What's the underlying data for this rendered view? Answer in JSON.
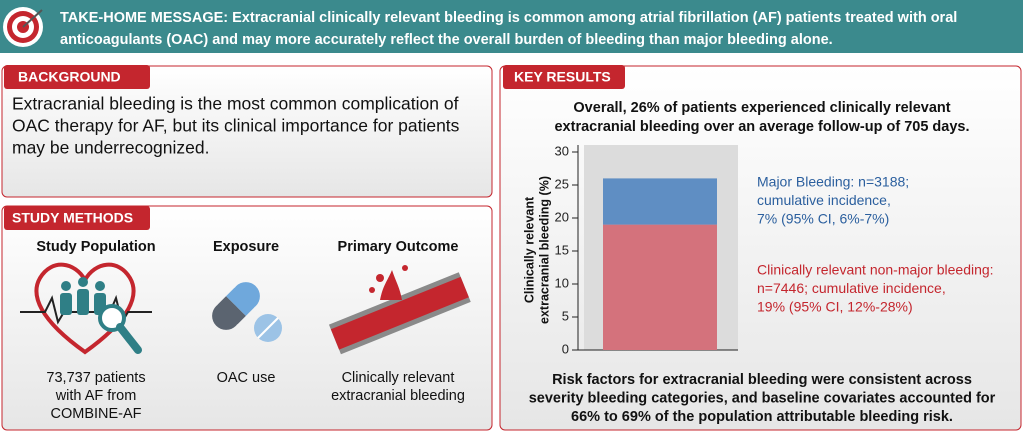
{
  "header": {
    "lines": [
      "TAKE-HOME MESSAGE: Extracranial clinically relevant bleeding is common among atrial fibrillation (AF) patients treated with oral",
      "anticoagulants (OAC) and may more accurately reflect the overall burden of bleeding than major bleeding alone."
    ]
  },
  "background": {
    "title": "BACKGROUND",
    "lines": [
      "Extracranial bleeding is the most common complication of",
      "OAC therapy for AF, but its clinical importance for patients",
      "may be underrecognized."
    ]
  },
  "study_methods": {
    "title": "STUDY METHODS",
    "columns": [
      {
        "heading": "Study Population",
        "lines": [
          "73,737 patients",
          "with AF from",
          "COMBINE-AF"
        ]
      },
      {
        "heading": "Exposure",
        "lines": [
          "OAC use"
        ]
      },
      {
        "heading": "Primary Outcome",
        "lines": [
          "Clinically relevant",
          "extracranial bleeding"
        ]
      }
    ]
  },
  "key_results": {
    "title": "KEY RESULTS",
    "summary": [
      "Overall, 26% of patients experienced clinically relevant",
      "extracranial bleeding over an average follow-up of 705 days."
    ],
    "conclusion": [
      "Risk factors for extracranial bleeding were consistent across",
      "severity bleeding categories, and baseline covariates accounted for",
      "66% to 69% of the population attributable bleeding risk."
    ]
  },
  "chart_data": {
    "type": "bar",
    "stacked": true,
    "categories": [
      null
    ],
    "ylabel": [
      "Clinically relevant",
      "extracranial bleeding (%)"
    ],
    "ylim": [
      0,
      30
    ],
    "yticks": [
      0,
      5,
      10,
      15,
      20,
      25,
      30
    ],
    "series": [
      {
        "color": "#d4727c",
        "values": [
          19
        ]
      },
      {
        "color": "#5f8ec3",
        "values": [
          7
        ]
      }
    ],
    "annotations": [
      {
        "color": "#2b5f9e",
        "lines": [
          "Major Bleeding: n=3188;",
          "cumulative incidence,",
          "7% (95% CI, 6%-7%)"
        ]
      },
      {
        "color": "#c4262e",
        "lines": [
          "Clinically relevant non-major bleeding:",
          "n=7446; cumulative incidence,",
          "19% (95% CI, 12%-28%)"
        ]
      }
    ]
  }
}
